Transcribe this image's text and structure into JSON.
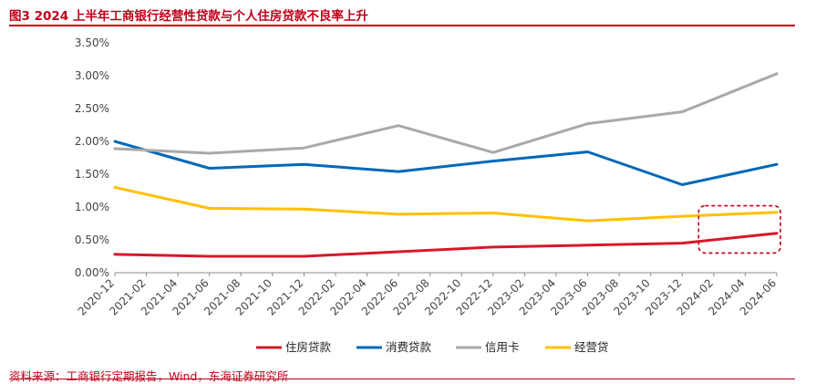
{
  "header": {
    "title": "图3 2024 上半年工商银行经营性贷款与个人住房贷款不良率上升"
  },
  "footer": {
    "source": "资料来源：工商银行定期报告，Wind，东海证券研究所"
  },
  "colors": {
    "title": "#c0001a",
    "住房贷款": "#d7182a",
    "消费贷款": "#0068b8",
    "信用卡": "#a9a9a9",
    "经营贷": "#ffc000",
    "highlight_box": "#c0001a"
  },
  "chart_data": {
    "type": "line",
    "title": "",
    "xlabel": "",
    "ylabel": "",
    "y_format": "percent_2dp",
    "ylim": [
      0,
      0.035
    ],
    "yticks": [
      0,
      0.005,
      0.01,
      0.015,
      0.02,
      0.025,
      0.03,
      0.035
    ],
    "ytick_labels": [
      "0.00%",
      "0.50%",
      "1.00%",
      "1.50%",
      "2.00%",
      "2.50%",
      "3.00%",
      "3.50%"
    ],
    "x_tick_labels": [
      "2020-12",
      "2021-02",
      "2021-04",
      "2021-06",
      "2021-08",
      "2021-10",
      "2021-12",
      "2022-02",
      "2022-04",
      "2022-06",
      "2022-08",
      "2022-10",
      "2022-12",
      "2023-02",
      "2023-04",
      "2023-06",
      "2023-08",
      "2023-10",
      "2023-12",
      "2024-02",
      "2024-04",
      "2024-06"
    ],
    "x_points": [
      "2020-12",
      "2021-06",
      "2021-12",
      "2022-06",
      "2022-12",
      "2023-06",
      "2023-12",
      "2024-06"
    ],
    "series": [
      {
        "name": "住房贷款",
        "color": "#d7182a",
        "values": [
          0.0028,
          0.0025,
          0.0025,
          0.0032,
          0.0039,
          0.0042,
          0.0045,
          0.006
        ]
      },
      {
        "name": "消费贷款",
        "color": "#0068b8",
        "values": [
          0.02,
          0.0159,
          0.0165,
          0.0154,
          0.017,
          0.0184,
          0.0134,
          0.0165
        ]
      },
      {
        "name": "信用卡",
        "color": "#a9a9a9",
        "values": [
          0.0189,
          0.0182,
          0.019,
          0.0224,
          0.0183,
          0.0227,
          0.0245,
          0.0303
        ]
      },
      {
        "name": "经营贷",
        "color": "#ffc000",
        "values": [
          0.013,
          0.0098,
          0.0097,
          0.0089,
          0.0091,
          0.0079,
          0.0086,
          0.0092
        ]
      }
    ],
    "grid": false,
    "legend_position": "bottom",
    "highlight_box": {
      "x_from": "2023-12",
      "x_to": "2024-06",
      "y_from": 0.003,
      "y_to": 0.0102,
      "style": "dashed"
    }
  }
}
